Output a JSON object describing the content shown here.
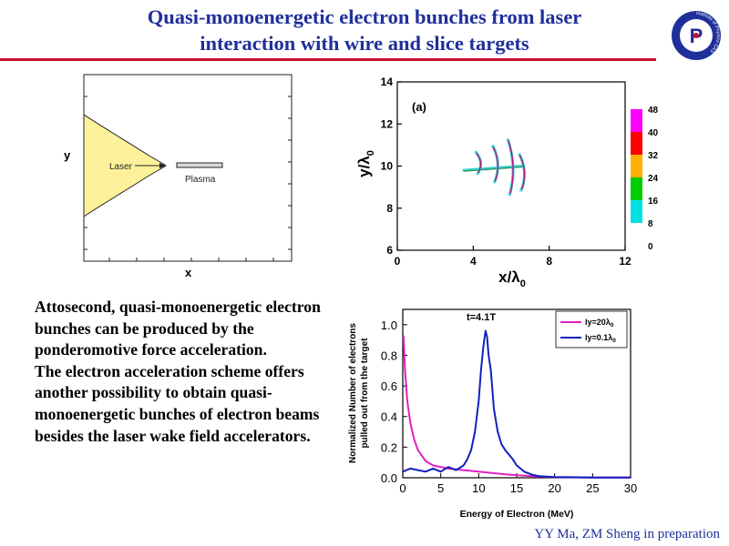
{
  "slide": {
    "title_line1": "Quasi-monoenergetic electron bunches from laser",
    "title_line2": "interaction with wire and slice targets",
    "body_paragraph1": "Attosecond, quasi-monoenergetic electron bunches can be produced by the ponderomotive force acceleration.",
    "body_paragraph2": "The electron acceleration scheme offers another possibility to obtain quasi-monoenergetic bunches of electron beams besides the laser wake field accelerators.",
    "credit": "YY Ma, ZM Sheng in preparation",
    "colors": {
      "title": "#1f2f9a",
      "rule": "#c8102e",
      "logo": "#1f2f9a"
    }
  },
  "logo": {
    "center_glyph": "P",
    "ring_text": "Institute of Physics CAS"
  },
  "schematic": {
    "ylabel": "y",
    "xlabel": "x",
    "laser_label": "Laser",
    "plasma_label": "Plasma",
    "colors": {
      "laser_fill": "#fdf29b",
      "plasma": "#d9d9d9"
    }
  },
  "chart_data": [
    {
      "type": "scatter",
      "panel_label": "(a)",
      "xlabel": "x/λ",
      "xlabel_sub": "0",
      "ylabel": "y/λ",
      "ylabel_sub": "0",
      "xlim": [
        0,
        12
      ],
      "ylim": [
        6,
        14
      ],
      "x_ticks": [
        "0",
        "4",
        "8",
        "12"
      ],
      "y_ticks": [
        "6",
        "8",
        "10",
        "12",
        "14"
      ],
      "colorbar": {
        "ticks": [
          "48",
          "40",
          "32",
          "24",
          "16",
          "8",
          "0"
        ],
        "colors": [
          "#ff00ff",
          "#ff0000",
          "#ffb000",
          "#00cc00",
          "#00e0e0",
          "#ffffff"
        ]
      },
      "features": [
        {
          "name": "central bunch streak",
          "x": [
            3.5,
            6.6
          ],
          "y": [
            9.8,
            10.0
          ]
        },
        {
          "name": "bunch arc 1",
          "x": 4.3,
          "y": [
            9.6,
            10.7
          ]
        },
        {
          "name": "bunch arc 2",
          "x": 5.2,
          "y": [
            9.2,
            11.0
          ]
        },
        {
          "name": "bunch arc 3",
          "x": 6.0,
          "y": [
            8.6,
            11.3
          ]
        },
        {
          "name": "bunch arc 4",
          "x": 6.6,
          "y": [
            8.8,
            10.6
          ]
        }
      ]
    },
    {
      "type": "line",
      "annotation": "t=4.1T",
      "xlabel": "Energy of Electron (MeV)",
      "ylabel_line1": "Normalized Number of electrons",
      "ylabel_line2": "pulled out from the target",
      "xlim": [
        0,
        30
      ],
      "ylim": [
        0,
        1.1
      ],
      "x_ticks": [
        "0",
        "5",
        "10",
        "15",
        "20",
        "25",
        "30"
      ],
      "y_ticks": [
        "0.0",
        "0.2",
        "0.4",
        "0.6",
        "0.8",
        "1.0"
      ],
      "legend_position": "top-right",
      "series": [
        {
          "name": "ly=20λ",
          "name_sub": "0",
          "color": "#e020c0",
          "x": [
            0.1,
            0.3,
            0.6,
            1.0,
            1.5,
            2.0,
            3.0,
            4.0,
            6.0,
            8.0,
            10.0,
            12.0,
            14.0,
            17.0,
            20.0,
            25.0,
            30.0
          ],
          "y": [
            0.93,
            0.7,
            0.5,
            0.36,
            0.25,
            0.18,
            0.11,
            0.08,
            0.06,
            0.05,
            0.04,
            0.03,
            0.02,
            0.01,
            0.005,
            0.002,
            0.001
          ]
        },
        {
          "name": "ly=0.1λ",
          "name_sub": "0",
          "color": "#1020c0",
          "x": [
            0.0,
            1.0,
            2.0,
            3.0,
            4.0,
            5.0,
            6.0,
            7.0,
            8.0,
            8.5,
            9.0,
            9.5,
            10.0,
            10.3,
            10.6,
            10.9,
            11.1,
            11.3,
            11.6,
            12.0,
            12.5,
            13.0,
            13.5,
            14.0,
            14.5,
            15.0,
            15.5,
            16.0,
            17.0,
            18.0,
            20.0,
            25.0,
            30.0
          ],
          "y": [
            0.04,
            0.06,
            0.05,
            0.04,
            0.06,
            0.04,
            0.07,
            0.05,
            0.08,
            0.12,
            0.18,
            0.3,
            0.5,
            0.7,
            0.85,
            0.96,
            0.92,
            0.8,
            0.7,
            0.45,
            0.3,
            0.22,
            0.18,
            0.15,
            0.12,
            0.08,
            0.06,
            0.04,
            0.02,
            0.01,
            0.005,
            0.002,
            0.001
          ]
        }
      ]
    }
  ]
}
